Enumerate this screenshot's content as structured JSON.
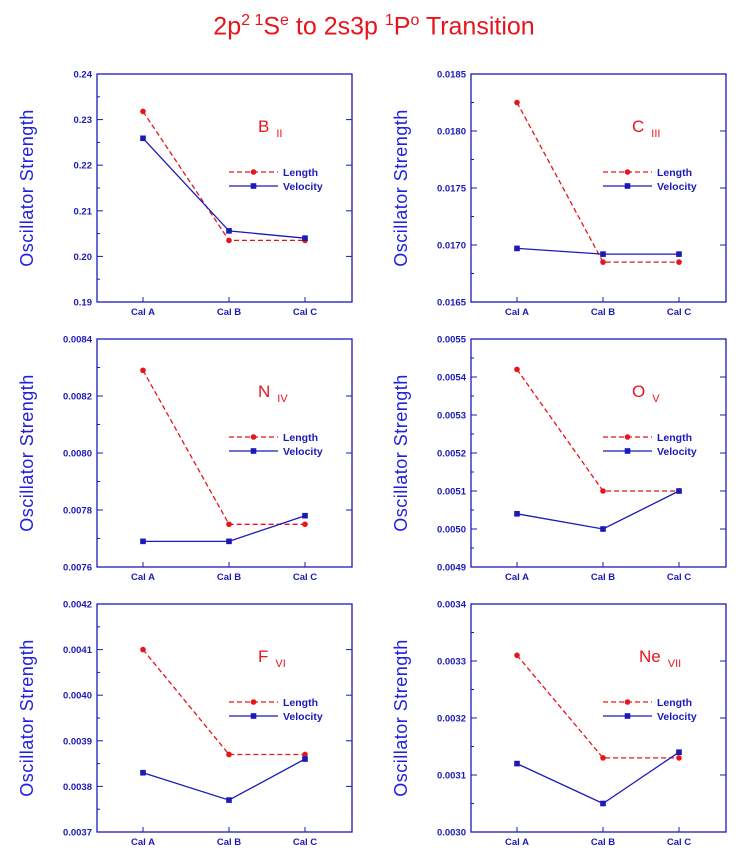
{
  "title": {
    "prefix": "2p",
    "sup1": "2 1",
    "mid1": "S",
    "sup2": "e",
    "mid2": " to 2s3p ",
    "sup3": "1",
    "mid3": "P",
    "sup4": "o",
    "suffix": "  Transition"
  },
  "colors": {
    "length": "#e8141c",
    "velocity": "#1a1ab8",
    "axis_label": "#2020e0",
    "title": "#e8141c"
  },
  "chart_data": [
    {
      "type": "line",
      "ion": "B",
      "ion_sub": "II",
      "categories": [
        "Cal A",
        "Cal B",
        "Cal C"
      ],
      "ylabel": "Oscillator Strength",
      "ylim": [
        0.19,
        0.24
      ],
      "yticks": [
        "0.19",
        "0.20",
        "0.21",
        "0.22",
        "0.23",
        "0.24"
      ],
      "series": [
        {
          "name": "Length",
          "values": [
            0.2318,
            0.2035,
            0.2035
          ],
          "dash": true
        },
        {
          "name": "Velocity",
          "values": [
            0.2259,
            0.2056,
            0.204
          ],
          "dash": false
        }
      ]
    },
    {
      "type": "line",
      "ion": "C",
      "ion_sub": "III",
      "categories": [
        "Cal A",
        "Cal B",
        "Cal C"
      ],
      "ylabel": "Oscillator Strength",
      "ylim": [
        0.0165,
        0.0185
      ],
      "yticks": [
        "0.0165",
        "0.0170",
        "0.0175",
        "0.0180",
        "0.0185"
      ],
      "series": [
        {
          "name": "Length",
          "values": [
            0.01825,
            0.01685,
            0.01685
          ],
          "dash": true
        },
        {
          "name": "Velocity",
          "values": [
            0.01697,
            0.01692,
            0.01692
          ],
          "dash": false
        }
      ]
    },
    {
      "type": "line",
      "ion": "N",
      "ion_sub": "IV",
      "categories": [
        "Cal A",
        "Cal B",
        "Cal C"
      ],
      "ylabel": "Oscillator Strength",
      "ylim": [
        0.0076,
        0.0084
      ],
      "yticks": [
        "0.0076",
        "0.0078",
        "0.0080",
        "0.0082",
        "0.0084"
      ],
      "series": [
        {
          "name": "Length",
          "values": [
            0.00829,
            0.00775,
            0.00775
          ],
          "dash": true
        },
        {
          "name": "Velocity",
          "values": [
            0.00769,
            0.00769,
            0.00778
          ],
          "dash": false
        }
      ]
    },
    {
      "type": "line",
      "ion": "O",
      "ion_sub": "V",
      "categories": [
        "Cal A",
        "Cal B",
        "Cal C"
      ],
      "ylabel": "Oscillator Strength",
      "ylim": [
        0.0049,
        0.0055
      ],
      "yticks": [
        "0.0049",
        "0.0050",
        "0.0051",
        "0.0052",
        "0.0053",
        "0.0054",
        "0.0055"
      ],
      "series": [
        {
          "name": "Length",
          "values": [
            0.00542,
            0.0051,
            0.0051
          ],
          "dash": true
        },
        {
          "name": "Velocity",
          "values": [
            0.00504,
            0.005,
            0.0051
          ],
          "dash": false
        }
      ]
    },
    {
      "type": "line",
      "ion": "F",
      "ion_sub": "VI",
      "categories": [
        "Cal A",
        "Cal B",
        "Cal C"
      ],
      "ylabel": "Oscillator Strength",
      "ylim": [
        0.0037,
        0.0042
      ],
      "yticks": [
        "0.0037",
        "0.0038",
        "0.0039",
        "0.0040",
        "0.0041",
        "0.0042"
      ],
      "series": [
        {
          "name": "Length",
          "values": [
            0.0041,
            0.00387,
            0.00387
          ],
          "dash": true
        },
        {
          "name": "Velocity",
          "values": [
            0.00383,
            0.00377,
            0.00386
          ],
          "dash": false
        }
      ]
    },
    {
      "type": "line",
      "ion": "Ne",
      "ion_sub": "VII",
      "categories": [
        "Cal A",
        "Cal B",
        "Cal C"
      ],
      "ylabel": "Oscillator Strength",
      "ylim": [
        0.003,
        0.0034
      ],
      "yticks": [
        "0.0030",
        "0.0031",
        "0.0032",
        "0.0033",
        "0.0034"
      ],
      "series": [
        {
          "name": "Length",
          "values": [
            0.00331,
            0.00313,
            0.00313
          ],
          "dash": true
        },
        {
          "name": "Velocity",
          "values": [
            0.00312,
            0.00305,
            0.00314
          ],
          "dash": false
        }
      ]
    }
  ]
}
